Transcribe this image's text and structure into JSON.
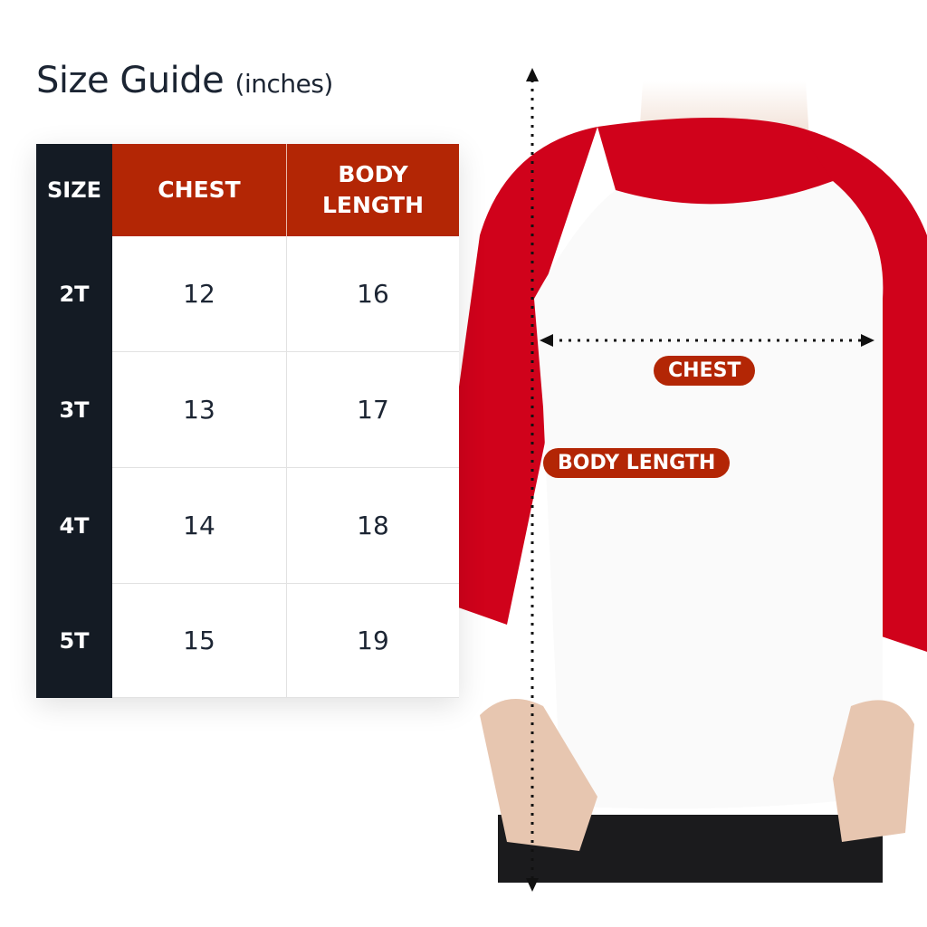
{
  "title": {
    "main": "Size Guide",
    "unit": "(inches)"
  },
  "table": {
    "headers": [
      "SIZE",
      "CHEST",
      "BODY\nLENGTH"
    ],
    "header_lines": {
      "body": "BODY",
      "length": "LENGTH"
    },
    "rows": [
      {
        "size": "2T",
        "chest": "12",
        "body_length": "16"
      },
      {
        "size": "3T",
        "chest": "13",
        "body_length": "17"
      },
      {
        "size": "4T",
        "chest": "14",
        "body_length": "18"
      },
      {
        "size": "5T",
        "chest": "15",
        "body_length": "19"
      }
    ]
  },
  "labels": {
    "chest": "CHEST",
    "body_length": "BODY LENGTH"
  },
  "colors": {
    "header_red": "#b32605",
    "size_column": "#141b24",
    "shirt_red": "#d0021b",
    "text": "#1c2533"
  }
}
